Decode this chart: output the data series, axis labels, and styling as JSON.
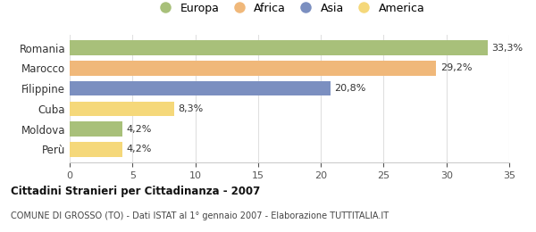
{
  "categories": [
    "Romania",
    "Marocco",
    "Filippine",
    "Cuba",
    "Moldova",
    "Perù"
  ],
  "values": [
    33.3,
    29.2,
    20.8,
    8.3,
    4.2,
    4.2
  ],
  "labels": [
    "33,3%",
    "29,2%",
    "20,8%",
    "8,3%",
    "4,2%",
    "4,2%"
  ],
  "colors": [
    "#a8c07a",
    "#f0b87a",
    "#7b8fc0",
    "#f5d87a",
    "#a8c07a",
    "#f5d87a"
  ],
  "legend_labels": [
    "Europa",
    "Africa",
    "Asia",
    "America"
  ],
  "legend_colors": [
    "#a8c07a",
    "#f0b87a",
    "#7b8fc0",
    "#f5d87a"
  ],
  "title": "Cittadini Stranieri per Cittadinanza - 2007",
  "subtitle": "COMUNE DI GROSSO (TO) - Dati ISTAT al 1° gennaio 2007 - Elaborazione TUTTITALIA.IT",
  "xlim": [
    0,
    35
  ],
  "xticks": [
    0,
    5,
    10,
    15,
    20,
    25,
    30,
    35
  ],
  "background_color": "#ffffff",
  "grid_color": "#e0e0e0"
}
